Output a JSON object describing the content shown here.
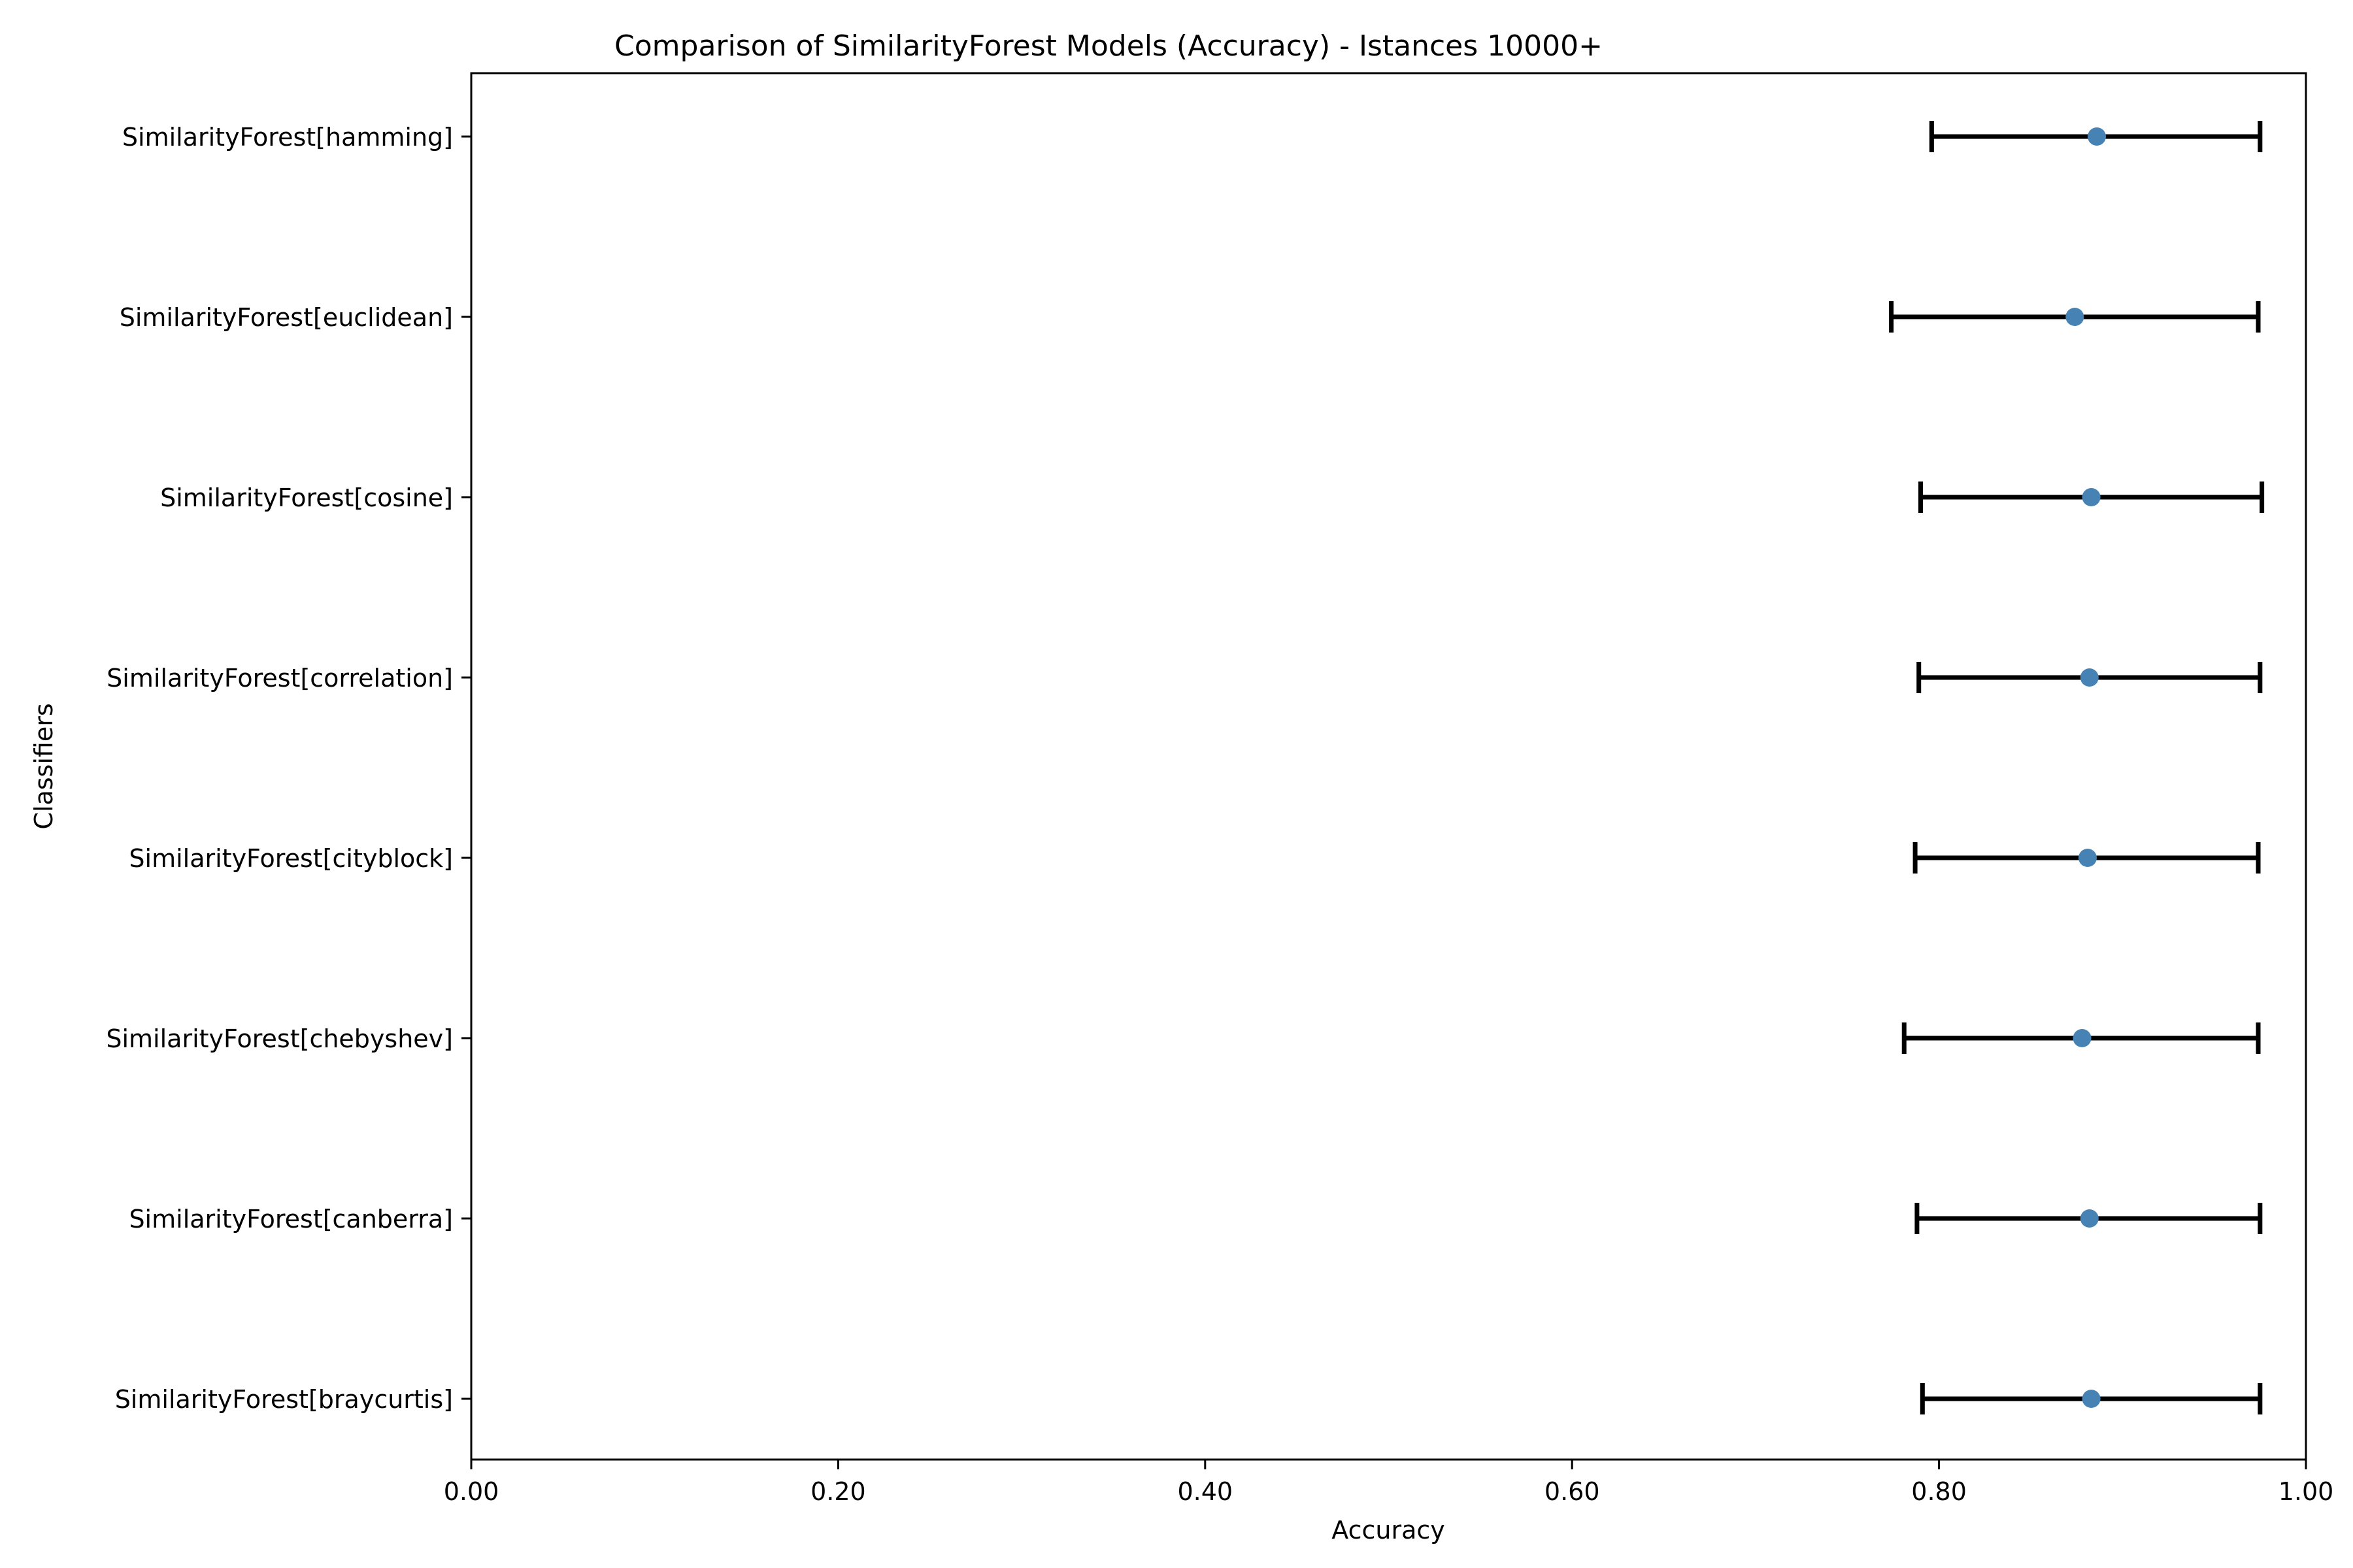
{
  "chart_data": {
    "type": "errorbar",
    "orientation": "horizontal",
    "title": "Comparison of SimilarityForest Models (Accuracy) - Istances 10000+",
    "xlabel": "Accuracy",
    "ylabel": "Classifiers",
    "xlim": [
      0.0,
      1.0
    ],
    "xticks": [
      0.0,
      0.2,
      0.4,
      0.6,
      0.8,
      1.0
    ],
    "xtick_labels": [
      "0.00",
      "0.20",
      "0.40",
      "0.60",
      "0.80",
      "1.00"
    ],
    "grid": false,
    "legend": "none",
    "colors": {
      "marker": "#4682b4",
      "errorbar": "#000000",
      "axes": "#000000"
    },
    "series": [
      {
        "label": "SimilarityForest[hamming]",
        "mean": 0.886,
        "low": 0.796,
        "high": 0.975
      },
      {
        "label": "SimilarityForest[euclidean]",
        "mean": 0.874,
        "low": 0.774,
        "high": 0.974
      },
      {
        "label": "SimilarityForest[cosine]",
        "mean": 0.883,
        "low": 0.79,
        "high": 0.976
      },
      {
        "label": "SimilarityForest[correlation]",
        "mean": 0.882,
        "low": 0.789,
        "high": 0.975
      },
      {
        "label": "SimilarityForest[cityblock]",
        "mean": 0.881,
        "low": 0.787,
        "high": 0.974
      },
      {
        "label": "SimilarityForest[chebyshev]",
        "mean": 0.878,
        "low": 0.781,
        "high": 0.974
      },
      {
        "label": "SimilarityForest[canberra]",
        "mean": 0.882,
        "low": 0.788,
        "high": 0.975
      },
      {
        "label": "SimilarityForest[braycurtis]",
        "mean": 0.883,
        "low": 0.791,
        "high": 0.975
      }
    ]
  }
}
